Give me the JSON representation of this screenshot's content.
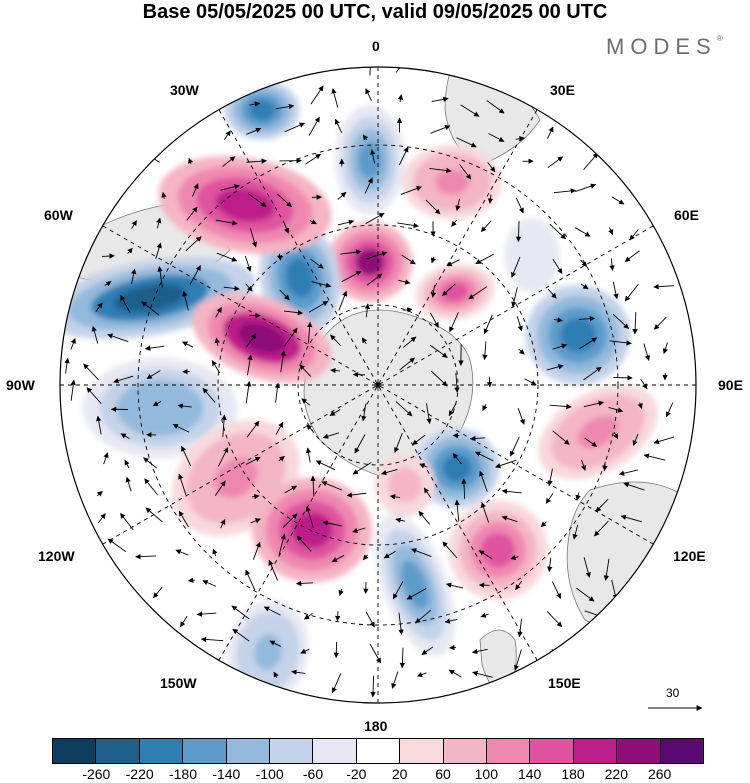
{
  "title": "Base 05/05/2025 00 UTC, valid 09/05/2025 00 UTC",
  "brand": "MODES",
  "brand_mark": "®",
  "longitude_labels": {
    "deg0": "0",
    "deg30E": "30E",
    "deg60E": "60E",
    "deg90E": "90E",
    "deg120E": "120E",
    "deg150E": "150E",
    "deg180": "180",
    "deg150W": "150W",
    "deg120W": "120W",
    "deg90W": "90W",
    "deg60W": "60W",
    "deg30W": "30W"
  },
  "vector_reference": {
    "value": "30"
  },
  "colorbar": {
    "colors": [
      "#0d3d5e",
      "#1c5f8c",
      "#2e7db3",
      "#5b9ccb",
      "#93b9dc",
      "#c4d3e9",
      "#e7e8f3",
      "#ffffff",
      "#f8d9dc",
      "#f4b5c5",
      "#ef88b0",
      "#df529f",
      "#bd1f8a",
      "#8e0d78",
      "#5a0a72"
    ],
    "tick_labels": [
      "-260",
      "-220",
      "-180",
      "-140",
      "-100",
      "-60",
      "-20",
      "20",
      "60",
      "100",
      "140",
      "180",
      "220",
      "260"
    ]
  },
  "colors": {
    "land": "#e8e8e8",
    "coast": "#777777",
    "grid": "#000000"
  },
  "anomalies": [
    {
      "c": 3,
      "v": -180
    },
    {
      "c": 4,
      "v": 220
    },
    {
      "c": 5,
      "v": -200
    },
    {
      "c": 6,
      "v": 180
    },
    {
      "c": 7,
      "v": -260
    },
    {
      "c": 8,
      "v": 240
    },
    {
      "c": 9,
      "v": -140
    },
    {
      "c": 10,
      "v": 120
    },
    {
      "c": 11,
      "v": 200
    },
    {
      "c": 12,
      "v": -180
    },
    {
      "c": 13,
      "v": 160
    },
    {
      "c": 14,
      "v": -220
    },
    {
      "c": 15,
      "v": 120
    },
    {
      "c": 16,
      "v": -200
    },
    {
      "c": 17,
      "v": 140
    },
    {
      "c": 18,
      "v": -120
    },
    {
      "c": 19,
      "v": 100
    },
    {
      "c": 20,
      "v": -220
    },
    {
      "c": 21,
      "v": -60
    },
    {
      "c": 22,
      "v": 80
    }
  ]
}
